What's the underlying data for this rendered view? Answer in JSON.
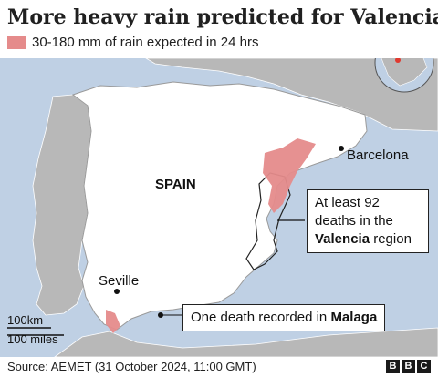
{
  "title": "More heavy rain predicted for Valencia region",
  "legend": {
    "label": "30-180 mm of rain expected in 24 hrs",
    "color": "#e58b8b"
  },
  "map": {
    "country_label": "SPAIN",
    "cities": [
      {
        "name": "Barcelona"
      },
      {
        "name": "Seville"
      }
    ],
    "callouts": {
      "valencia": {
        "pre": "At least 92",
        "mid": "deaths in the",
        "bold": "Valencia",
        "post": " region"
      },
      "malaga": {
        "pre": "One death recorded in ",
        "bold": "Malaga"
      }
    },
    "scale": {
      "km": "100km",
      "miles": "100 miles"
    },
    "colors": {
      "sea": "#bfd0e4",
      "spain": "#ffffff",
      "neighbours": "#b8b8b8",
      "rain": "#e58b8b"
    }
  },
  "footer": {
    "source": "Source: AEMET (31 October 2024, 11:00 GMT)",
    "logo": [
      "B",
      "B",
      "C"
    ]
  }
}
